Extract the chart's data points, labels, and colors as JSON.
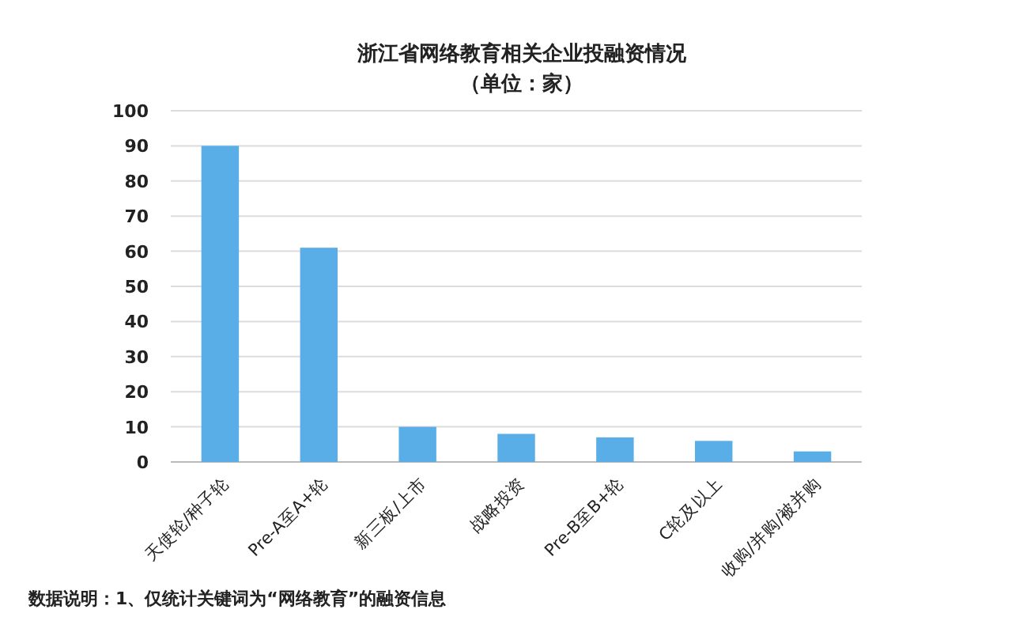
{
  "chart_data": {
    "type": "bar",
    "title": "浙江省网络教育相关企业投融资情况",
    "subtitle": "（单位：家）",
    "categories": [
      "天使轮/种子轮",
      "Pre-A至A+轮",
      "新三板/上市",
      "战略投资",
      "Pre-B至B+轮",
      "C轮及以上",
      "收购/并购/被并购"
    ],
    "values": [
      90,
      61,
      10,
      8,
      7,
      6,
      3
    ],
    "color": "#5aaee8",
    "ylim": [
      0,
      100
    ],
    "yticks": [
      0,
      10,
      20,
      30,
      40,
      50,
      60,
      70,
      80,
      90,
      100
    ],
    "grid": "y",
    "annotations": [
      "数据说明：1、仅统计关键词为“网络教育”的融资信息"
    ]
  }
}
